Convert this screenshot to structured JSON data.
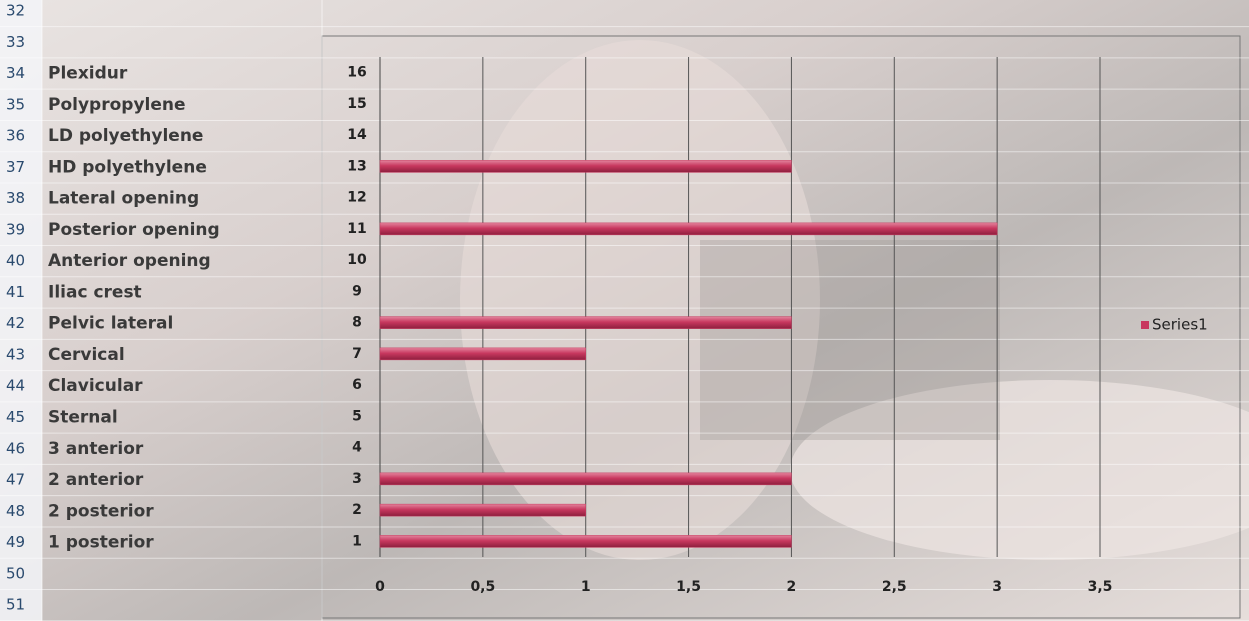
{
  "sheet": {
    "rows": [
      {
        "number": "32",
        "label": null
      },
      {
        "number": "33",
        "label": null
      },
      {
        "number": "34",
        "label": "Plexidur"
      },
      {
        "number": "35",
        "label": "Polypropylene"
      },
      {
        "number": "36",
        "label": "LD polyethylene"
      },
      {
        "number": "37",
        "label": "HD polyethylene"
      },
      {
        "number": "38",
        "label": "Lateral opening"
      },
      {
        "number": "39",
        "label": "Posterior opening"
      },
      {
        "number": "40",
        "label": "Anterior opening"
      },
      {
        "number": "41",
        "label": "Iliac crest"
      },
      {
        "number": "42",
        "label": "Pelvic lateral"
      },
      {
        "number": "43",
        "label": "Cervical"
      },
      {
        "number": "44",
        "label": "Clavicular"
      },
      {
        "number": "45",
        "label": "Sternal"
      },
      {
        "number": "46",
        "label": "3 anterior"
      },
      {
        "number": "47",
        "label": "2 anterior"
      },
      {
        "number": "48",
        "label": "2 posterior"
      },
      {
        "number": "49",
        "label": "1 posterior"
      },
      {
        "number": "50",
        "label": null
      },
      {
        "number": "51",
        "label": null
      }
    ]
  },
  "chart_data": {
    "type": "barh",
    "categories": [
      "1",
      "2",
      "3",
      "4",
      "5",
      "6",
      "7",
      "8",
      "9",
      "10",
      "11",
      "12",
      "13",
      "14",
      "15",
      "16"
    ],
    "series": [
      {
        "name": "Series1",
        "color": "#c8385f",
        "values": [
          2,
          1,
          2,
          null,
          null,
          null,
          1,
          2,
          null,
          null,
          3,
          null,
          2,
          null,
          null,
          null
        ]
      }
    ],
    "xlim": [
      0,
      3.5
    ],
    "xticks": [
      0,
      {
        "value": 0.5,
        "label": "0,5"
      },
      1,
      {
        "value": 1.5,
        "label": "1,5"
      },
      2,
      {
        "value": 2.5,
        "label": "2,5"
      },
      3,
      {
        "value": 3.5,
        "label": "3,5"
      }
    ],
    "grid": true,
    "legend": "right"
  }
}
